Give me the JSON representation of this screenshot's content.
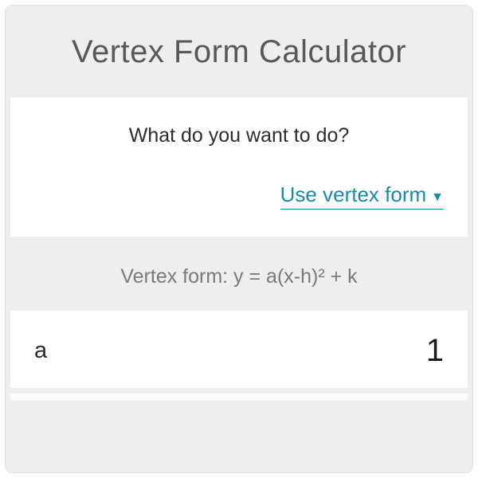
{
  "title": "Vertex Form Calculator",
  "question": "What do you want to do?",
  "mode_select": {
    "label": "Use vertex form",
    "options": [
      "Use vertex form"
    ]
  },
  "formula": "Vertex form: y = a(x-h)² + k",
  "inputs": {
    "a": {
      "label": "a",
      "value": "1"
    }
  },
  "colors": {
    "page_bg": "#ffffff",
    "card_bg": "#eeeeee",
    "section_bg": "#ffffff",
    "title_color": "#585858",
    "text_color": "#2d2d2d",
    "muted_color": "#7a7a7a",
    "accent_color": "#1b8aa6",
    "border_color": "#dcdcdc"
  },
  "typography": {
    "title_fontsize": 40,
    "body_fontsize": 25,
    "select_fontsize": 26,
    "value_fontsize": 40,
    "label_fontsize": 29
  }
}
